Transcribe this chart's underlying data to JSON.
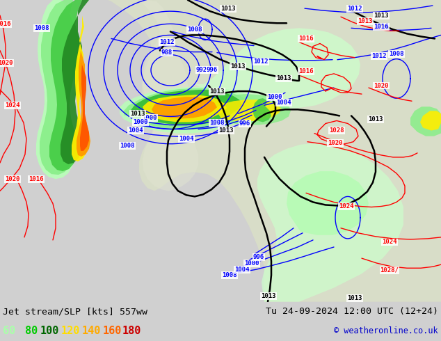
{
  "title_left": "Jet stream/SLP [kts] 557ww",
  "title_right": "Tu 24-09-2024 12:00 UTC (12+24)",
  "copyright": "© weatheronline.co.uk",
  "bg_color": "#d0d0d0",
  "ocean_color": "#dde8f0",
  "land_color": "#e8e8e0",
  "land_color2": "#d8d8c8",
  "colorbar_items": [
    {
      "label": "60",
      "color": "#aaffaa"
    },
    {
      "label": "80",
      "color": "#00cc00"
    },
    {
      "label": "100",
      "color": "#006600"
    },
    {
      "label": "120",
      "color": "#ffdd00"
    },
    {
      "label": "140",
      "color": "#ffaa00"
    },
    {
      "label": "160",
      "color": "#ff6600"
    },
    {
      "label": "180",
      "color": "#cc0000"
    }
  ],
  "copyright_color": "#0000cc",
  "title_color": "#000000"
}
